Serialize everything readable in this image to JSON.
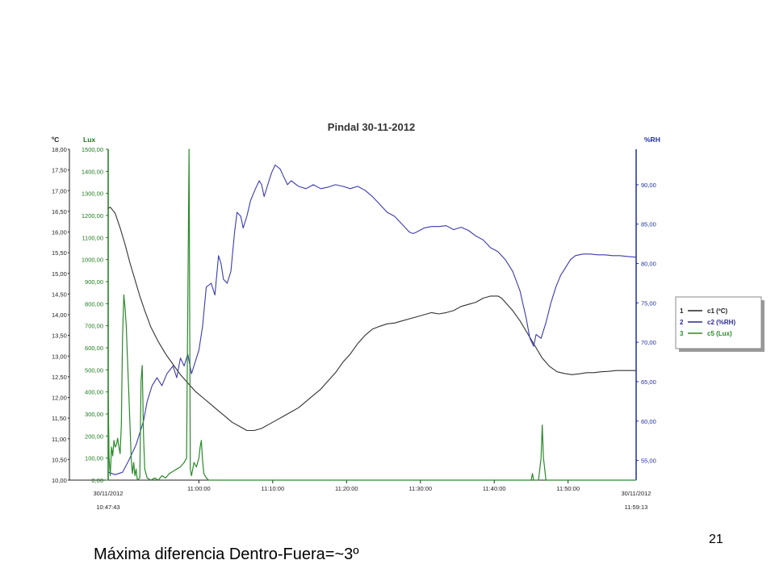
{
  "caption": "Máxima diferencia Dentro-Fuera=~3º",
  "page_number": "21",
  "colors": {
    "temperature": "#333333",
    "humidity": "#3b3bb0",
    "lux": "#2a8a2a",
    "rh_axis": "#1f2fa0",
    "lux_axis": "#1d7a1d"
  },
  "chart_data": {
    "type": "line",
    "title": "Pindal 30-11-2012",
    "axes": {
      "left1": {
        "label": "ºC",
        "min": 10,
        "max": 18,
        "ticks": [
          "10,00",
          "10,50",
          "11,00",
          "11,50",
          "12,00",
          "12,50",
          "13,00",
          "13,50",
          "14,00",
          "14,50",
          "15,00",
          "15,50",
          "16,00",
          "16,50",
          "17,00",
          "17,50",
          "18,00"
        ]
      },
      "left2": {
        "label": "Lux",
        "min": 0,
        "max": 1500,
        "ticks": [
          "0,00",
          "100,00",
          "200,00",
          "300,00",
          "400,00",
          "500,00",
          "600,00",
          "700,00",
          "800,00",
          "900,00",
          "1000,00",
          "1100,00",
          "1200,00",
          "1300,00",
          "1400,00",
          "1500,00"
        ]
      },
      "right": {
        "label": "%RH",
        "min": 52.5,
        "max": 94.5,
        "ticks": [
          "55,00",
          "60,00",
          "65,00",
          "70,00",
          "75,00",
          "80,00",
          "85,00",
          "90,00"
        ]
      },
      "x": {
        "start_label": [
          "30/11/2012",
          "10:47:43"
        ],
        "end_label": [
          "30/11/2012",
          "11:59:13"
        ],
        "ticks": [
          "11:00:00",
          "11:10:00",
          "11:20:00",
          "11:30:00",
          "11:40:00",
          "11:50:00"
        ]
      }
    },
    "legend": {
      "position": "right",
      "entries": [
        {
          "num": "1",
          "name": "c1 (ºC)",
          "color": "#222222"
        },
        {
          "num": "2",
          "name": "c2 (%RH)",
          "color": "#2a2a90"
        },
        {
          "num": "3",
          "name": "c5 (Lux)",
          "color": "#2a8a2a"
        }
      ]
    },
    "series": [
      {
        "key": "temperature",
        "axis": "left1",
        "unit": "ºC",
        "points": [
          [
            "10:47:43",
            16.57
          ],
          [
            "10:48:00",
            16.6
          ],
          [
            "10:48:40",
            16.45
          ],
          [
            "10:49:20",
            16.1
          ],
          [
            "10:50:00",
            15.7
          ],
          [
            "10:50:40",
            15.25
          ],
          [
            "10:51:20",
            14.85
          ],
          [
            "10:52:00",
            14.45
          ],
          [
            "10:52:40",
            14.1
          ],
          [
            "10:53:30",
            13.7
          ],
          [
            "10:54:30",
            13.35
          ],
          [
            "10:55:30",
            13.05
          ],
          [
            "10:56:30",
            12.8
          ],
          [
            "10:57:30",
            12.55
          ],
          [
            "10:58:30",
            12.35
          ],
          [
            "10:59:30",
            12.15
          ],
          [
            "11:00:30",
            12.0
          ],
          [
            "11:01:30",
            11.85
          ],
          [
            "11:02:30",
            11.7
          ],
          [
            "11:03:30",
            11.55
          ],
          [
            "11:04:30",
            11.4
          ],
          [
            "11:05:30",
            11.3
          ],
          [
            "11:06:30",
            11.2
          ],
          [
            "11:07:30",
            11.2
          ],
          [
            "11:08:30",
            11.25
          ],
          [
            "11:09:30",
            11.35
          ],
          [
            "11:10:30",
            11.45
          ],
          [
            "11:11:30",
            11.55
          ],
          [
            "11:12:30",
            11.65
          ],
          [
            "11:13:30",
            11.75
          ],
          [
            "11:14:30",
            11.9
          ],
          [
            "11:15:30",
            12.05
          ],
          [
            "11:16:30",
            12.2
          ],
          [
            "11:17:30",
            12.4
          ],
          [
            "11:18:30",
            12.6
          ],
          [
            "11:19:30",
            12.85
          ],
          [
            "11:20:30",
            13.05
          ],
          [
            "11:21:30",
            13.3
          ],
          [
            "11:22:30",
            13.5
          ],
          [
            "11:23:30",
            13.65
          ],
          [
            "11:24:30",
            13.72
          ],
          [
            "11:25:30",
            13.78
          ],
          [
            "11:26:30",
            13.8
          ],
          [
            "11:27:30",
            13.85
          ],
          [
            "11:28:30",
            13.9
          ],
          [
            "11:29:30",
            13.95
          ],
          [
            "11:30:30",
            14.0
          ],
          [
            "11:31:30",
            14.05
          ],
          [
            "11:32:30",
            14.02
          ],
          [
            "11:33:30",
            14.05
          ],
          [
            "11:34:30",
            14.1
          ],
          [
            "11:35:30",
            14.2
          ],
          [
            "11:36:30",
            14.25
          ],
          [
            "11:37:30",
            14.3
          ],
          [
            "11:38:30",
            14.4
          ],
          [
            "11:39:30",
            14.45
          ],
          [
            "11:40:30",
            14.45
          ],
          [
            "11:41:00",
            14.4
          ],
          [
            "11:41:30",
            14.3
          ],
          [
            "11:42:30",
            14.1
          ],
          [
            "11:43:30",
            13.85
          ],
          [
            "11:44:30",
            13.55
          ],
          [
            "11:45:30",
            13.25
          ],
          [
            "11:46:30",
            12.95
          ],
          [
            "11:47:30",
            12.75
          ],
          [
            "11:48:30",
            12.62
          ],
          [
            "11:49:30",
            12.58
          ],
          [
            "11:50:30",
            12.55
          ],
          [
            "11:51:30",
            12.57
          ],
          [
            "11:52:30",
            12.6
          ],
          [
            "11:53:30",
            12.6
          ],
          [
            "11:54:30",
            12.62
          ],
          [
            "11:55:30",
            12.63
          ],
          [
            "11:56:30",
            12.65
          ],
          [
            "11:57:30",
            12.65
          ],
          [
            "11:58:30",
            12.65
          ],
          [
            "11:59:13",
            12.65
          ]
        ]
      },
      {
        "key": "humidity",
        "axis": "right",
        "unit": "%RH",
        "points": [
          [
            "10:47:43",
            53.5
          ],
          [
            "10:48:40",
            53.2
          ],
          [
            "10:49:40",
            53.5
          ],
          [
            "10:50:30",
            55.0
          ],
          [
            "10:51:30",
            57.0
          ],
          [
            "10:52:30",
            60.0
          ],
          [
            "10:53:00",
            62.5
          ],
          [
            "10:53:40",
            64.5
          ],
          [
            "10:54:20",
            65.5
          ],
          [
            "10:55:00",
            64.5
          ],
          [
            "10:55:40",
            66.0
          ],
          [
            "10:56:30",
            67.0
          ],
          [
            "10:57:00",
            65.5
          ],
          [
            "10:57:30",
            68.0
          ],
          [
            "10:58:00",
            67.0
          ],
          [
            "10:58:30",
            68.5
          ],
          [
            "10:59:00",
            66.0
          ],
          [
            "10:59:30",
            67.5
          ],
          [
            "11:00:00",
            69.0
          ],
          [
            "11:00:30",
            72.0
          ],
          [
            "11:01:00",
            77.0
          ],
          [
            "11:01:40",
            77.5
          ],
          [
            "11:02:10",
            76.0
          ],
          [
            "11:02:40",
            81.0
          ],
          [
            "11:03:00",
            80.0
          ],
          [
            "11:03:20",
            78.0
          ],
          [
            "11:03:50",
            77.5
          ],
          [
            "11:04:20",
            79.0
          ],
          [
            "11:04:50",
            84.0
          ],
          [
            "11:05:10",
            86.5
          ],
          [
            "11:05:40",
            86.0
          ],
          [
            "11:06:00",
            84.5
          ],
          [
            "11:06:30",
            86.0
          ],
          [
            "11:07:00",
            88.0
          ],
          [
            "11:07:40",
            89.5
          ],
          [
            "11:08:10",
            90.5
          ],
          [
            "11:08:30",
            90.0
          ],
          [
            "11:08:50",
            88.5
          ],
          [
            "11:09:20",
            90.0
          ],
          [
            "11:09:50",
            91.5
          ],
          [
            "11:10:20",
            92.5
          ],
          [
            "11:11:00",
            92.0
          ],
          [
            "11:11:30",
            91.0
          ],
          [
            "11:12:00",
            90.0
          ],
          [
            "11:12:30",
            90.5
          ],
          [
            "11:13:30",
            89.8
          ],
          [
            "11:14:30",
            89.5
          ],
          [
            "11:15:30",
            90.0
          ],
          [
            "11:16:30",
            89.5
          ],
          [
            "11:17:30",
            89.7
          ],
          [
            "11:18:30",
            90.0
          ],
          [
            "11:19:30",
            89.8
          ],
          [
            "11:20:30",
            89.5
          ],
          [
            "11:21:30",
            89.8
          ],
          [
            "11:22:30",
            89.3
          ],
          [
            "11:23:30",
            88.5
          ],
          [
            "11:24:30",
            87.5
          ],
          [
            "11:25:30",
            86.5
          ],
          [
            "11:26:30",
            86.0
          ],
          [
            "11:27:30",
            85.0
          ],
          [
            "11:28:30",
            84.0
          ],
          [
            "11:29:00",
            83.8
          ],
          [
            "11:29:30",
            84.0
          ],
          [
            "11:30:30",
            84.5
          ],
          [
            "11:31:30",
            84.7
          ],
          [
            "11:32:30",
            84.7
          ],
          [
            "11:33:30",
            84.8
          ],
          [
            "11:34:30",
            84.3
          ],
          [
            "11:35:30",
            84.6
          ],
          [
            "11:36:30",
            84.2
          ],
          [
            "11:37:30",
            83.5
          ],
          [
            "11:38:30",
            83.0
          ],
          [
            "11:39:30",
            82.0
          ],
          [
            "11:40:30",
            81.5
          ],
          [
            "11:41:30",
            80.5
          ],
          [
            "11:42:30",
            79.0
          ],
          [
            "11:43:30",
            76.5
          ],
          [
            "11:44:20",
            73.0
          ],
          [
            "11:44:50",
            70.5
          ],
          [
            "11:45:20",
            69.5
          ],
          [
            "11:45:40",
            71.0
          ],
          [
            "11:46:20",
            70.5
          ],
          [
            "11:47:00",
            72.5
          ],
          [
            "11:47:40",
            75.0
          ],
          [
            "11:48:20",
            77.0
          ],
          [
            "11:49:00",
            78.5
          ],
          [
            "11:49:40",
            79.5
          ],
          [
            "11:50:20",
            80.5
          ],
          [
            "11:51:00",
            81.0
          ],
          [
            "11:52:00",
            81.2
          ],
          [
            "11:53:00",
            81.2
          ],
          [
            "11:54:00",
            81.1
          ],
          [
            "11:55:00",
            81.1
          ],
          [
            "11:56:00",
            81.0
          ],
          [
            "11:57:00",
            81.0
          ],
          [
            "11:58:00",
            80.9
          ],
          [
            "11:59:13",
            80.8
          ]
        ]
      },
      {
        "key": "lux",
        "axis": "left2",
        "unit": "Lux",
        "points": [
          [
            "10:47:43",
            0
          ],
          [
            "10:47:43",
            400
          ],
          [
            "10:47:50",
            100
          ],
          [
            "10:48:00",
            20
          ],
          [
            "10:48:10",
            150
          ],
          [
            "10:48:20",
            110
          ],
          [
            "10:48:30",
            180
          ],
          [
            "10:48:40",
            150
          ],
          [
            "10:48:50",
            160
          ],
          [
            "10:49:00",
            190
          ],
          [
            "10:49:10",
            150
          ],
          [
            "10:49:20",
            120
          ],
          [
            "10:49:30",
            250
          ],
          [
            "10:49:40",
            650
          ],
          [
            "10:49:50",
            840
          ],
          [
            "10:50:00",
            780
          ],
          [
            "10:50:10",
            700
          ],
          [
            "10:50:20",
            550
          ],
          [
            "10:50:30",
            400
          ],
          [
            "10:50:40",
            250
          ],
          [
            "10:50:50",
            100
          ],
          [
            "10:51:00",
            30
          ],
          [
            "10:51:10",
            80
          ],
          [
            "10:51:20",
            20
          ],
          [
            "10:51:30",
            50
          ],
          [
            "10:51:40",
            0
          ],
          [
            "10:52:00",
            10
          ],
          [
            "10:52:10",
            450
          ],
          [
            "10:52:20",
            520
          ],
          [
            "10:52:30",
            200
          ],
          [
            "10:52:40",
            50
          ],
          [
            "10:53:00",
            10
          ],
          [
            "10:53:30",
            0
          ],
          [
            "10:54:00",
            10
          ],
          [
            "10:54:30",
            0
          ],
          [
            "10:55:00",
            20
          ],
          [
            "10:55:30",
            10
          ],
          [
            "10:56:00",
            30
          ],
          [
            "10:56:30",
            40
          ],
          [
            "10:57:00",
            50
          ],
          [
            "10:57:30",
            60
          ],
          [
            "10:58:00",
            80
          ],
          [
            "10:58:20",
            100
          ],
          [
            "10:58:40",
            1500
          ],
          [
            "10:58:50",
            50
          ],
          [
            "10:59:00",
            20
          ],
          [
            "10:59:20",
            80
          ],
          [
            "10:59:40",
            60
          ],
          [
            "11:00:00",
            100
          ],
          [
            "11:00:10",
            150
          ],
          [
            "11:00:20",
            180
          ],
          [
            "11:00:30",
            90
          ],
          [
            "11:00:40",
            30
          ],
          [
            "11:01:00",
            10
          ],
          [
            "11:01:20",
            0
          ],
          [
            "11:45:00",
            0
          ],
          [
            "11:45:10",
            30
          ],
          [
            "11:45:20",
            0
          ],
          [
            "11:46:00",
            0
          ],
          [
            "11:46:20",
            100
          ],
          [
            "11:46:30",
            250
          ],
          [
            "11:46:40",
            100
          ],
          [
            "11:47:00",
            0
          ],
          [
            "11:59:13",
            0
          ]
        ]
      }
    ]
  }
}
